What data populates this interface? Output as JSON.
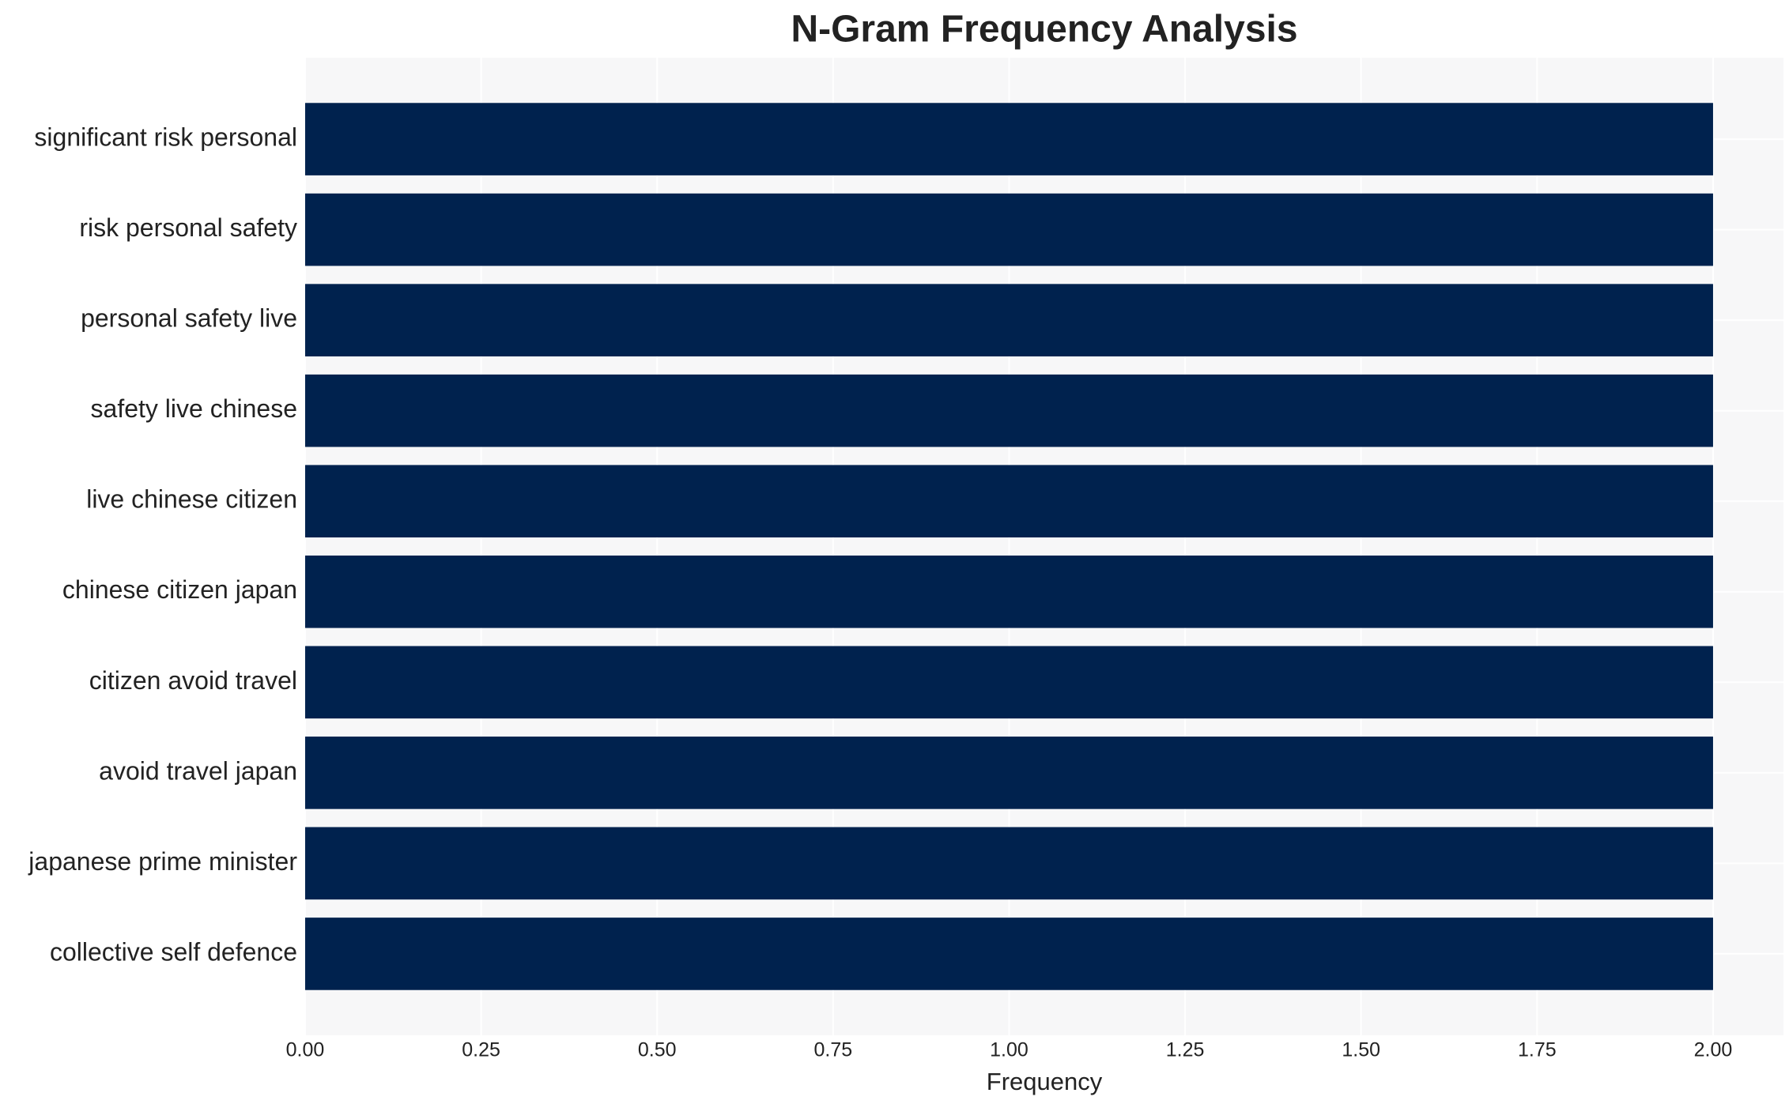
{
  "chart_data": {
    "type": "barh",
    "title": "N-Gram Frequency Analysis",
    "x_label": "Frequency",
    "categories": [
      "significant risk personal",
      "risk personal safety",
      "personal safety live",
      "safety live chinese",
      "live chinese citizen",
      "chinese citizen japan",
      "citizen avoid travel",
      "avoid travel japan",
      "japanese prime minister",
      "collective self defence"
    ],
    "values": [
      2,
      2,
      2,
      2,
      2,
      2,
      2,
      2,
      2,
      2
    ],
    "color": "#00224e",
    "xlim": [
      0,
      2.1
    ],
    "xticks": [
      {
        "value": 0,
        "label": "0.00"
      },
      {
        "value": 0.25,
        "label": "0.25"
      },
      {
        "value": 0.5,
        "label": "0.50"
      },
      {
        "value": 0.75,
        "label": "0.75"
      },
      {
        "value": 1,
        "label": "1.00"
      },
      {
        "value": 1.25,
        "label": "1.25"
      },
      {
        "value": 1.5,
        "label": "1.50"
      },
      {
        "value": 1.75,
        "label": "1.75"
      },
      {
        "value": 2,
        "label": "2.00"
      }
    ],
    "grid": true
  }
}
